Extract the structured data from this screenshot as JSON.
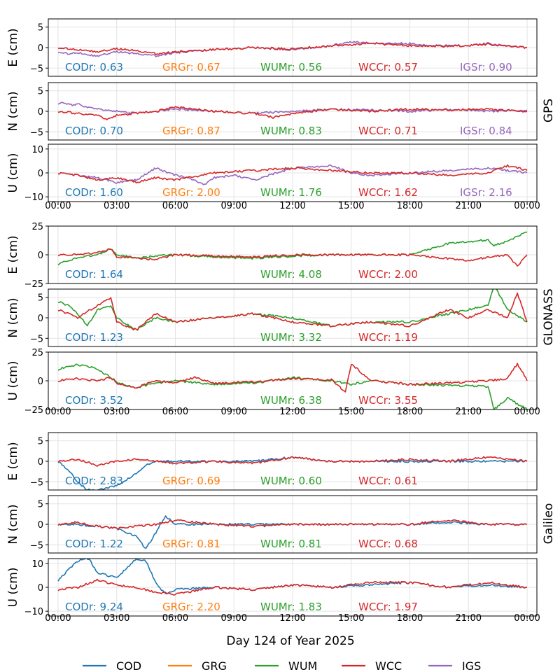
{
  "chart_data": {
    "type": "line",
    "xlabel": "Day 124 of Year 2025",
    "x_tick_labels": [
      "00:00",
      "03:00",
      "06:00",
      "09:00",
      "12:00",
      "15:00",
      "18:00",
      "21:00",
      "00:00"
    ],
    "x_range_hours": [
      0,
      24
    ],
    "grid": true,
    "legend_placement": "bottom-center",
    "series": [
      {
        "name": "COD",
        "color": "#1f77b4"
      },
      {
        "name": "GRG",
        "color": "#ff7f0e"
      },
      {
        "name": "WUM",
        "color": "#2ca02c"
      },
      {
        "name": "WCC",
        "color": "#d62728"
      },
      {
        "name": "IGS",
        "color": "#9467bd"
      }
    ],
    "groups": [
      {
        "system": "GPS",
        "panels": [
          {
            "ylabel": "E (cm)",
            "ylim": [
              -7,
              7
            ],
            "yticks": [
              -5,
              0,
              5
            ],
            "ytick_labels": [
              "−5",
              "0",
              "5"
            ],
            "stats": [
              {
                "label": "CODr: 0.63",
                "series": "COD"
              },
              {
                "label": "GRGr: 0.67",
                "series": "GRG"
              },
              {
                "label": "WUMr: 0.56",
                "series": "WUM"
              },
              {
                "label": "WCCr: 0.57",
                "series": "WCC"
              },
              {
                "label": "IGSr: 0.90",
                "series": "IGS"
              }
            ]
          },
          {
            "ylabel": "N (cm)",
            "ylim": [
              -7,
              7
            ],
            "yticks": [
              -5,
              0,
              5
            ],
            "ytick_labels": [
              "−5",
              "0",
              "5"
            ],
            "stats": [
              {
                "label": "CODr: 0.70",
                "series": "COD"
              },
              {
                "label": "GRGr: 0.87",
                "series": "GRG"
              },
              {
                "label": "WUMr: 0.83",
                "series": "WUM"
              },
              {
                "label": "WCCr: 0.71",
                "series": "WCC"
              },
              {
                "label": "IGSr: 0.84",
                "series": "IGS"
              }
            ]
          },
          {
            "ylabel": "U (cm)",
            "ylim": [
              -12,
              12
            ],
            "yticks": [
              -10,
              0,
              10
            ],
            "ytick_labels": [
              "−10",
              "0",
              "10"
            ],
            "stats": [
              {
                "label": "CODr: 1.60",
                "series": "COD"
              },
              {
                "label": "GRGr: 2.00",
                "series": "GRG"
              },
              {
                "label": "WUMr: 1.76",
                "series": "WUM"
              },
              {
                "label": "WCCr: 1.62",
                "series": "WCC"
              },
              {
                "label": "IGSr: 2.16",
                "series": "IGS"
              }
            ]
          }
        ]
      },
      {
        "system": "GLONASS",
        "panels": [
          {
            "ylabel": "E (cm)",
            "ylim": [
              -25,
              25
            ],
            "yticks": [
              -25,
              0,
              25
            ],
            "ytick_labels": [
              "−25",
              "0",
              "25"
            ],
            "stats": [
              {
                "label": "CODr: 1.64",
                "series": "COD"
              },
              {
                "label": "WUMr: 4.08",
                "series": "WUM"
              },
              {
                "label": "WCCr: 2.00",
                "series": "WCC"
              }
            ]
          },
          {
            "ylabel": "N (cm)",
            "ylim": [
              -7,
              7
            ],
            "yticks": [
              -5,
              0,
              5
            ],
            "ytick_labels": [
              "−5",
              "0",
              "5"
            ],
            "stats": [
              {
                "label": "CODr: 1.23",
                "series": "COD"
              },
              {
                "label": "WUMr: 3.32",
                "series": "WUM"
              },
              {
                "label": "WCCr: 1.19",
                "series": "WCC"
              }
            ]
          },
          {
            "ylabel": "U (cm)",
            "ylim": [
              -25,
              25
            ],
            "yticks": [
              -25,
              0,
              25
            ],
            "ytick_labels": [
              "−25",
              "0",
              "25"
            ],
            "stats": [
              {
                "label": "CODr: 3.52",
                "series": "COD"
              },
              {
                "label": "WUMr: 6.38",
                "series": "WUM"
              },
              {
                "label": "WCCr: 3.55",
                "series": "WCC"
              }
            ]
          }
        ]
      },
      {
        "system": "Galileo",
        "panels": [
          {
            "ylabel": "E (cm)",
            "ylim": [
              -7,
              7
            ],
            "yticks": [
              -5,
              0,
              5
            ],
            "ytick_labels": [
              "−5",
              "0",
              "5"
            ],
            "stats": [
              {
                "label": "CODr: 2.83",
                "series": "COD"
              },
              {
                "label": "GRGr: 0.69",
                "series": "GRG"
              },
              {
                "label": "WUMr: 0.60",
                "series": "WUM"
              },
              {
                "label": "WCCr: 0.61",
                "series": "WCC"
              }
            ]
          },
          {
            "ylabel": "N (cm)",
            "ylim": [
              -7,
              7
            ],
            "yticks": [
              -5,
              0,
              5
            ],
            "ytick_labels": [
              "−5",
              "0",
              "5"
            ],
            "stats": [
              {
                "label": "CODr: 1.22",
                "series": "COD"
              },
              {
                "label": "GRGr: 0.81",
                "series": "GRG"
              },
              {
                "label": "WUMr: 0.81",
                "series": "WUM"
              },
              {
                "label": "WCCr: 0.68",
                "series": "WCC"
              }
            ]
          },
          {
            "ylabel": "U (cm)",
            "ylim": [
              -12,
              12
            ],
            "yticks": [
              -10,
              0,
              10
            ],
            "ytick_labels": [
              "−10",
              "0",
              "10"
            ],
            "stats": [
              {
                "label": "CODr: 9.24",
                "series": "COD"
              },
              {
                "label": "GRGr: 2.20",
                "series": "GRG"
              },
              {
                "label": "WUMr: 1.83",
                "series": "WUM"
              },
              {
                "label": "WCCr: 1.97",
                "series": "WCC"
              }
            ]
          }
        ]
      }
    ],
    "traces": [
      {
        "series": "IGS",
        "group": 0,
        "panel": 0,
        "x": [
          0,
          0.5,
          1,
          1.5,
          2,
          3,
          4,
          5,
          6,
          8,
          10,
          12,
          14,
          15,
          16,
          17,
          18,
          19,
          20,
          21,
          22,
          23,
          24
        ],
        "y": [
          -1,
          -1.5,
          -1.2,
          -1.8,
          -2,
          -1,
          -1.5,
          -2,
          -1.2,
          -0.5,
          0,
          -0.5,
          0.5,
          1.5,
          1,
          1,
          1,
          0.5,
          0.5,
          0.5,
          1,
          0.5,
          0
        ]
      },
      {
        "series": "WCC",
        "group": 0,
        "panel": 0,
        "x": [
          0,
          1,
          2,
          3,
          4,
          5,
          6,
          8,
          10,
          12,
          14,
          16,
          18,
          20,
          22,
          24
        ],
        "y": [
          0,
          -0.5,
          -1,
          -0.3,
          -0.8,
          -1.5,
          -1,
          -0.5,
          0,
          -0.3,
          0.5,
          1,
          0.5,
          0.3,
          0.8,
          0
        ]
      },
      {
        "series": "IGS",
        "group": 0,
        "panel": 1,
        "x": [
          0,
          0.3,
          0.6,
          1,
          1.5,
          2,
          3,
          4,
          6,
          8,
          10,
          12,
          14,
          16,
          18,
          20,
          22,
          24
        ],
        "y": [
          2,
          2.2,
          1.5,
          1.8,
          1,
          0.5,
          0,
          -0.5,
          0.5,
          0,
          -0.5,
          0,
          0.5,
          0.3,
          0,
          0.5,
          0,
          0.3
        ]
      },
      {
        "series": "WCC",
        "group": 0,
        "panel": 1,
        "x": [
          0,
          1,
          2,
          2.5,
          3,
          4,
          5,
          6,
          8,
          10,
          11,
          12,
          14,
          16,
          18,
          20,
          22,
          24
        ],
        "y": [
          0,
          -0.5,
          -1,
          -2,
          -1,
          -0.5,
          0,
          1,
          0,
          -0.5,
          -1.5,
          -0.5,
          0.5,
          0,
          0.5,
          0.3,
          0.5,
          0
        ]
      },
      {
        "series": "IGS",
        "group": 0,
        "panel": 2,
        "x": [
          0,
          1,
          2,
          3,
          4,
          5,
          6,
          7,
          7.5,
          8,
          9,
          10,
          12,
          14,
          15,
          16,
          18,
          20,
          22,
          24
        ],
        "y": [
          0,
          -1,
          -2,
          -4,
          -3,
          2,
          -1,
          -3,
          -5,
          -2,
          -1,
          -3,
          2,
          3,
          0,
          -1,
          0,
          1,
          2,
          0
        ]
      },
      {
        "series": "WCC",
        "group": 0,
        "panel": 2,
        "x": [
          0,
          1,
          2,
          3,
          4,
          5,
          6,
          8,
          10,
          12,
          14,
          16,
          18,
          20,
          22,
          23,
          24
        ],
        "y": [
          0,
          -1,
          -3,
          -2,
          -4,
          -2,
          -3,
          0,
          1,
          2,
          1,
          0,
          0,
          -1,
          0,
          3,
          1
        ]
      },
      {
        "series": "WUM",
        "group": 1,
        "panel": 0,
        "x": [
          0,
          0.5,
          1,
          1.5,
          2,
          2.7,
          3,
          4,
          5,
          6,
          8,
          10,
          12,
          14,
          16,
          18,
          20,
          22,
          22.3,
          23,
          24
        ],
        "y": [
          -8,
          -5,
          -3,
          -1,
          0,
          5,
          0,
          -3,
          -1,
          0,
          -2,
          -3,
          -1,
          0,
          0,
          0,
          10,
          13,
          8,
          12,
          20
        ]
      },
      {
        "series": "WCC",
        "group": 1,
        "panel": 0,
        "x": [
          0,
          1,
          2,
          2.7,
          3,
          4,
          5,
          6,
          8,
          10,
          12,
          14,
          16,
          18,
          21,
          22,
          23,
          23.5,
          24
        ],
        "y": [
          0,
          0,
          2,
          5,
          -2,
          -3,
          -4,
          0,
          -1,
          -2,
          0,
          0,
          0,
          0,
          -5,
          -2,
          0,
          -10,
          0
        ]
      },
      {
        "series": "WUM",
        "group": 1,
        "panel": 1,
        "x": [
          0,
          0.5,
          1,
          1.5,
          2,
          2.7,
          3,
          4,
          5,
          6,
          8,
          10,
          12,
          14,
          16,
          18,
          20,
          21,
          22,
          22.3,
          23,
          24
        ],
        "y": [
          4,
          3,
          1,
          -2,
          2,
          3,
          0,
          -3,
          0,
          -1,
          0,
          1,
          0,
          -2,
          -1,
          -1,
          1,
          2,
          3,
          8,
          2,
          -1
        ]
      },
      {
        "series": "WCC",
        "group": 1,
        "panel": 1,
        "x": [
          0,
          1,
          2,
          2.7,
          3,
          4,
          5,
          6,
          8,
          10,
          12,
          14,
          16,
          18,
          20,
          21,
          22,
          23,
          23.5,
          24
        ],
        "y": [
          2,
          0,
          3,
          5,
          -1,
          -3,
          1,
          -1,
          0,
          1,
          -1,
          -2,
          -1,
          -2,
          2,
          0,
          2,
          0,
          6,
          -1
        ]
      },
      {
        "series": "WUM",
        "group": 1,
        "panel": 2,
        "x": [
          0,
          0.5,
          1,
          1.5,
          2,
          2.7,
          3,
          4,
          5,
          6,
          8,
          10,
          12,
          14,
          15,
          16,
          18,
          20,
          22,
          22.3,
          23,
          24
        ],
        "y": [
          10,
          12,
          14,
          13,
          10,
          3,
          -1,
          -6,
          -2,
          0,
          -3,
          -2,
          3,
          0,
          -3,
          0,
          -3,
          -4,
          -5,
          -25,
          -15,
          -25
        ]
      },
      {
        "series": "WCC",
        "group": 1,
        "panel": 2,
        "x": [
          0,
          1,
          2,
          2.7,
          3,
          4,
          5,
          6,
          7,
          8,
          10,
          12,
          14,
          14.7,
          15,
          16,
          18,
          20,
          22,
          23,
          23.5,
          24
        ],
        "y": [
          0,
          2,
          0,
          3,
          -2,
          -6,
          0,
          -2,
          3,
          -2,
          -1,
          2,
          1,
          -10,
          15,
          0,
          -3,
          -2,
          0,
          2,
          15,
          0
        ]
      },
      {
        "series": "COD",
        "group": 2,
        "panel": 0,
        "x": [
          0,
          0.5,
          1,
          1.5,
          2,
          3,
          4,
          4.5,
          5,
          5.5,
          6,
          8,
          10,
          12,
          14,
          16,
          18,
          20,
          22,
          24
        ],
        "y": [
          0,
          -2,
          -5,
          -7,
          -7,
          -6,
          -3,
          -1,
          0,
          0,
          0,
          0,
          0,
          1,
          0,
          0,
          0,
          0,
          0,
          0
        ]
      },
      {
        "series": "WCC",
        "group": 2,
        "panel": 0,
        "x": [
          0,
          1,
          2,
          3,
          4,
          6,
          8,
          10,
          12,
          14,
          16,
          18,
          20,
          22,
          24
        ],
        "y": [
          0,
          0.5,
          -1,
          0,
          0.5,
          -0.5,
          0,
          -0.5,
          1,
          0,
          0,
          0.5,
          0,
          1,
          0
        ]
      },
      {
        "series": "COD",
        "group": 2,
        "panel": 1,
        "x": [
          0,
          1,
          2,
          3,
          4,
          4.5,
          5,
          5.5,
          6,
          8,
          10,
          12,
          14,
          16,
          18,
          20,
          22,
          24
        ],
        "y": [
          0,
          0,
          -0.5,
          -1,
          -3,
          -6,
          -2,
          2,
          0,
          0,
          0,
          0,
          0,
          0,
          0,
          0.5,
          0,
          0
        ]
      },
      {
        "series": "WCC",
        "group": 2,
        "panel": 1,
        "x": [
          0,
          1,
          2,
          3,
          4,
          5,
          6,
          8,
          10,
          12,
          14,
          16,
          18,
          20,
          22,
          24
        ],
        "y": [
          0,
          0.5,
          -0.5,
          -1,
          -0.5,
          0,
          1,
          0,
          -0.5,
          0,
          0,
          0,
          0,
          1,
          0,
          0
        ]
      },
      {
        "series": "COD",
        "group": 2,
        "panel": 2,
        "x": [
          0,
          0.5,
          1,
          1.3,
          1.6,
          2,
          3,
          3.5,
          4,
          4.5,
          5,
          5.5,
          6,
          8,
          10,
          12,
          14,
          16,
          18,
          20,
          22,
          24
        ],
        "y": [
          3,
          7,
          11,
          12,
          12,
          6,
          4,
          8,
          12,
          11,
          2,
          -3,
          -1,
          0,
          -1,
          1,
          0,
          1,
          2,
          0,
          1,
          0
        ]
      },
      {
        "series": "WCC",
        "group": 2,
        "panel": 2,
        "x": [
          0,
          1,
          2,
          3,
          4,
          5,
          6,
          8,
          10,
          12,
          14,
          16,
          18,
          20,
          22,
          24
        ],
        "y": [
          -1,
          0,
          3,
          1,
          0,
          -2,
          -3,
          0,
          -1,
          1,
          0,
          2,
          2,
          0,
          2,
          0
        ]
      }
    ]
  }
}
